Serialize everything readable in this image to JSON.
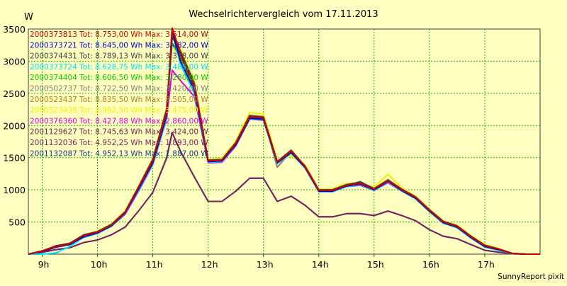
{
  "chart_data": {
    "type": "line",
    "title": "Wechselrichtervergleich vom 17.11.2013",
    "ylabel": "W",
    "xlabel": "",
    "footer": "SunnyReport pixit",
    "ylim": [
      0,
      3500
    ],
    "xlim": [
      8.75,
      18.0
    ],
    "yticks": [
      500,
      1000,
      1500,
      2000,
      2500,
      3000,
      3500
    ],
    "ytick_labels": [
      "500",
      "1000",
      "1500",
      "2000",
      "2500",
      "3000",
      "3500"
    ],
    "xticks": [
      9,
      10,
      11,
      12,
      13,
      14,
      15,
      16,
      17
    ],
    "xtick_labels": [
      "9h",
      "10h",
      "11h",
      "12h",
      "13h",
      "14h",
      "15h",
      "16h",
      "17h"
    ],
    "grid": true,
    "colors": {
      "background": "#ffffc0",
      "grid": "#00c000"
    },
    "series": [
      {
        "name": "2000373813 Tot: 8.753,00 Wh Max: 3.514,00 W",
        "color": "#cc0000",
        "x": [
          8.75,
          9.0,
          9.25,
          9.5,
          9.75,
          10.0,
          10.25,
          10.5,
          10.75,
          11.0,
          11.25,
          11.35,
          11.5,
          11.75,
          12.0,
          12.25,
          12.5,
          12.75,
          13.0,
          13.25,
          13.5,
          13.75,
          14.0,
          14.25,
          14.5,
          14.75,
          15.0,
          15.25,
          15.5,
          15.75,
          16.0,
          16.25,
          16.5,
          16.75,
          17.0,
          17.25,
          17.5,
          17.75,
          18.0
        ],
        "y": [
          0,
          50,
          120,
          160,
          290,
          340,
          450,
          650,
          1050,
          1450,
          2200,
          3514,
          3100,
          2600,
          1450,
          1460,
          1720,
          2130,
          2120,
          1430,
          1600,
          1360,
          990,
          990,
          1070,
          1100,
          1010,
          1140,
          1000,
          880,
          680,
          500,
          430,
          270,
          130,
          80,
          10,
          0,
          0
        ]
      },
      {
        "name": "2000373721 Tot: 8.645,00 Wh Max: 3.482,00 W",
        "color": "#0000cc",
        "x": [
          8.75,
          9.0,
          9.25,
          9.5,
          9.75,
          10.0,
          10.25,
          10.5,
          10.75,
          11.0,
          11.25,
          11.35,
          11.5,
          11.75,
          12.0,
          12.25,
          12.5,
          12.75,
          13.0,
          13.25,
          13.5,
          13.75,
          14.0,
          14.25,
          14.5,
          14.75,
          15.0,
          15.25,
          15.5,
          15.75,
          16.0,
          16.25,
          16.5,
          16.75,
          17.0,
          17.25,
          17.5,
          17.75,
          18.0
        ],
        "y": [
          0,
          40,
          110,
          150,
          270,
          330,
          440,
          640,
          1020,
          1420,
          2150,
          3482,
          3000,
          2550,
          1440,
          1450,
          1700,
          2110,
          2100,
          1420,
          1580,
          1350,
          980,
          980,
          1060,
          1090,
          1000,
          1130,
          990,
          870,
          670,
          490,
          420,
          260,
          120,
          70,
          10,
          0,
          0
        ]
      },
      {
        "name": "2000374431 Tot: 8.789,13 Wh Max: 3.378,00 W",
        "color": "#404040",
        "x": [
          8.75,
          9.0,
          9.25,
          9.5,
          9.75,
          10.0,
          10.25,
          10.5,
          10.75,
          11.0,
          11.25,
          11.35,
          11.5,
          11.75,
          12.0,
          12.25,
          12.5,
          12.75,
          13.0,
          13.25,
          13.5,
          13.75,
          14.0,
          14.25,
          14.5,
          14.75,
          15.0,
          15.25,
          15.5,
          15.75,
          16.0,
          16.25,
          16.5,
          16.75,
          17.0,
          17.25,
          17.5,
          17.75,
          18.0
        ],
        "y": [
          0,
          50,
          130,
          170,
          300,
          350,
          460,
          660,
          1060,
          1470,
          2250,
          3378,
          3150,
          2650,
          1460,
          1470,
          1730,
          2150,
          2130,
          1440,
          1610,
          1370,
          1000,
          1000,
          1080,
          1120,
          1020,
          1150,
          1010,
          890,
          690,
          510,
          440,
          280,
          140,
          80,
          10,
          0,
          0
        ]
      },
      {
        "name": "2000373724 Tot: 8.628,75 Wh Max: 3.485,00 W",
        "color": "#00e0ff",
        "x": [
          8.75,
          9.0,
          9.25,
          9.5,
          9.75,
          10.0,
          10.25,
          10.5,
          10.75,
          11.0,
          11.25,
          11.35,
          11.5,
          11.75,
          12.0,
          12.25,
          12.5,
          12.75,
          13.0,
          13.25,
          13.5,
          13.75,
          14.0,
          14.25,
          14.5,
          14.75,
          15.0,
          15.25,
          15.5,
          15.75,
          16.0,
          16.25,
          16.5,
          16.75,
          17.0,
          17.25,
          17.5,
          17.75,
          18.0
        ],
        "y": [
          0,
          0,
          20,
          120,
          260,
          320,
          430,
          630,
          1000,
          1400,
          2100,
          3485,
          2950,
          2500,
          1430,
          1440,
          1690,
          2100,
          2090,
          1410,
          1570,
          1340,
          970,
          970,
          1050,
          1080,
          990,
          1120,
          980,
          860,
          660,
          480,
          410,
          250,
          110,
          60,
          10,
          0,
          0
        ]
      },
      {
        "name": "2000374404 Tot: 8.606,50 Wh Max: 3.280,00 W",
        "color": "#00cc00",
        "x": [
          8.75,
          9.0,
          9.25,
          9.5,
          9.75,
          10.0,
          10.25,
          10.5,
          10.75,
          11.0,
          11.25,
          11.35,
          11.5,
          11.75,
          12.0,
          12.25,
          12.5,
          12.75,
          13.0,
          13.25,
          13.5,
          13.75,
          14.0,
          14.25,
          14.5,
          14.75,
          15.0,
          15.25,
          15.5,
          15.75,
          16.0,
          16.25,
          16.5,
          16.75,
          17.0,
          17.25,
          17.5,
          17.75,
          18.0
        ],
        "y": [
          0,
          40,
          110,
          150,
          270,
          330,
          440,
          640,
          1030,
          1430,
          2180,
          3280,
          3050,
          2560,
          1440,
          1450,
          1710,
          2120,
          2100,
          1420,
          1590,
          1350,
          980,
          980,
          1060,
          1090,
          1000,
          1130,
          990,
          870,
          670,
          490,
          420,
          260,
          120,
          70,
          10,
          0,
          0
        ]
      },
      {
        "name": "2000502737 Tot: 8.722,50 Wh Max: 3.420,00 W",
        "color": "#808080",
        "x": [
          8.75,
          9.0,
          9.25,
          9.5,
          9.75,
          10.0,
          10.25,
          10.5,
          10.75,
          11.0,
          11.25,
          11.35,
          11.5,
          11.75,
          12.0,
          12.25,
          12.5,
          12.75,
          13.0,
          13.25,
          13.5,
          13.75,
          14.0,
          14.25,
          14.5,
          14.75,
          15.0,
          15.25,
          15.5,
          15.75,
          16.0,
          16.25,
          16.5,
          16.75,
          17.0,
          17.25,
          17.5,
          17.75,
          18.0
        ],
        "y": [
          0,
          50,
          120,
          160,
          290,
          340,
          450,
          650,
          1050,
          1460,
          2220,
          3420,
          3120,
          2620,
          1450,
          1460,
          1720,
          2140,
          2120,
          1350,
          1600,
          1360,
          990,
          990,
          1070,
          1130,
          1010,
          1140,
          1000,
          880,
          680,
          500,
          430,
          270,
          130,
          80,
          10,
          0,
          0
        ]
      },
      {
        "name": "2000523437 Tot: 8.835,50 Wh Max: 3.505,00 W",
        "color": "#b08020",
        "x": [
          8.75,
          9.0,
          9.25,
          9.5,
          9.75,
          10.0,
          10.25,
          10.5,
          10.75,
          11.0,
          11.25,
          11.35,
          11.5,
          11.75,
          12.0,
          12.25,
          12.5,
          12.75,
          13.0,
          13.25,
          13.5,
          13.75,
          14.0,
          14.25,
          14.5,
          14.75,
          15.0,
          15.25,
          15.5,
          15.75,
          16.0,
          16.25,
          16.5,
          16.75,
          17.0,
          17.25,
          17.5,
          17.75,
          18.0
        ],
        "y": [
          0,
          50,
          130,
          170,
          300,
          350,
          460,
          660,
          1060,
          1480,
          2260,
          3505,
          3160,
          2660,
          1460,
          1470,
          1740,
          2160,
          2140,
          1440,
          1620,
          1370,
          1000,
          1000,
          1080,
          1120,
          1020,
          1160,
          1010,
          890,
          690,
          510,
          440,
          280,
          140,
          80,
          10,
          0,
          0
        ]
      },
      {
        "name": "2000523439 Tot: 8.962,50 Wh Max: 3.475,00 W",
        "color": "#f0f000",
        "x": [
          8.75,
          9.0,
          9.25,
          9.5,
          9.75,
          10.0,
          10.25,
          10.5,
          10.75,
          11.0,
          11.25,
          11.35,
          11.5,
          11.75,
          12.0,
          12.25,
          12.5,
          12.75,
          13.0,
          13.25,
          13.5,
          13.75,
          14.0,
          14.25,
          14.5,
          14.75,
          15.0,
          15.25,
          15.5,
          15.75,
          16.0,
          16.25,
          16.5,
          16.75,
          17.0,
          17.25,
          17.5,
          17.75,
          18.0
        ],
        "y": [
          0,
          50,
          130,
          170,
          300,
          360,
          470,
          670,
          1070,
          1490,
          2280,
          3475,
          3200,
          2700,
          1470,
          1490,
          1760,
          2200,
          2180,
          1460,
          1530,
          1390,
          1010,
          1020,
          1100,
          1110,
          1040,
          1240,
          1030,
          900,
          700,
          520,
          450,
          290,
          150,
          90,
          10,
          0,
          0
        ]
      },
      {
        "name": "2000376360 Tot: 8.427,88 Wh Max: 2.860,00 W",
        "color": "#e000e0",
        "x": [
          8.75,
          9.0,
          9.25,
          9.5,
          9.75,
          10.0,
          10.25,
          10.5,
          10.75,
          11.0,
          11.25,
          11.35,
          11.5,
          11.75,
          12.0,
          12.25,
          12.5,
          12.75,
          13.0,
          13.25,
          13.5,
          13.75,
          14.0,
          14.25,
          14.5,
          14.75,
          15.0,
          15.25,
          15.5,
          15.75,
          16.0,
          16.25,
          16.5,
          16.75,
          17.0,
          17.25,
          17.5,
          17.75,
          18.0
        ],
        "y": [
          0,
          40,
          110,
          150,
          270,
          320,
          430,
          620,
          990,
          1390,
          2100,
          2860,
          2700,
          2450,
          1420,
          1430,
          1680,
          2100,
          2080,
          1410,
          1570,
          1340,
          970,
          970,
          1050,
          1070,
          990,
          1110,
          980,
          860,
          660,
          480,
          410,
          250,
          110,
          60,
          10,
          0,
          0
        ]
      },
      {
        "name": "2001129627 Tot: 8.745,63 Wh Max: 3.424,00 W",
        "color": "#6a2a50",
        "x": [
          8.75,
          9.0,
          9.25,
          9.5,
          9.75,
          10.0,
          10.25,
          10.5,
          10.75,
          11.0,
          11.25,
          11.35,
          11.5,
          11.75,
          12.0,
          12.25,
          12.5,
          12.75,
          13.0,
          13.25,
          13.5,
          13.75,
          14.0,
          14.25,
          14.5,
          14.75,
          15.0,
          15.25,
          15.5,
          15.75,
          16.0,
          16.25,
          16.5,
          16.75,
          17.0,
          17.25,
          17.5,
          17.75,
          18.0
        ],
        "y": [
          0,
          50,
          120,
          160,
          290,
          340,
          450,
          650,
          1050,
          1460,
          2230,
          3424,
          3110,
          2610,
          1450,
          1460,
          1720,
          2130,
          2120,
          1430,
          1600,
          1360,
          990,
          990,
          1070,
          1100,
          1010,
          1140,
          1000,
          880,
          680,
          500,
          430,
          270,
          130,
          80,
          10,
          0,
          0
        ]
      },
      {
        "name": "2001132036 Tot: 4.952,25 Wh Max: 1.893,00 W",
        "color": "#802060",
        "x": [
          8.75,
          9.0,
          9.25,
          9.5,
          9.75,
          10.0,
          10.25,
          10.5,
          10.75,
          11.0,
          11.25,
          11.35,
          11.5,
          11.75,
          12.0,
          12.25,
          12.5,
          12.75,
          13.0,
          13.25,
          13.5,
          13.75,
          14.0,
          14.25,
          14.5,
          14.75,
          15.0,
          15.25,
          15.5,
          15.75,
          16.0,
          16.25,
          16.5,
          16.75,
          17.0,
          17.25,
          17.5,
          17.75,
          18.0
        ],
        "y": [
          0,
          30,
          70,
          100,
          180,
          220,
          300,
          420,
          680,
          960,
          1500,
          1893,
          1600,
          1200,
          820,
          820,
          980,
          1180,
          1180,
          820,
          900,
          760,
          580,
          580,
          630,
          630,
          600,
          670,
          600,
          520,
          380,
          280,
          240,
          150,
          60,
          30,
          5,
          0,
          0
        ]
      },
      {
        "name": "2001132087 Tot: 4.952,13 Wh Max: 1.887,00 W",
        "color": "#1a3a80",
        "x": [
          8.75,
          9.0,
          9.25,
          9.5,
          9.75,
          10.0,
          10.25,
          10.5,
          10.75,
          11.0,
          11.25,
          11.35,
          11.5,
          11.75,
          12.0,
          12.25,
          12.5,
          12.75,
          13.0,
          13.25,
          13.5,
          13.75,
          14.0,
          14.25,
          14.5,
          14.75,
          15.0,
          15.25,
          15.5,
          15.75,
          16.0,
          16.25,
          16.5,
          16.75,
          17.0,
          17.25,
          17.5,
          17.75,
          18.0
        ],
        "y": [
          0,
          30,
          70,
          100,
          180,
          220,
          300,
          420,
          680,
          960,
          1490,
          1887,
          1600,
          1200,
          820,
          820,
          980,
          1180,
          1180,
          820,
          900,
          760,
          580,
          580,
          630,
          630,
          600,
          670,
          600,
          520,
          380,
          280,
          240,
          150,
          60,
          30,
          5,
          0,
          0
        ]
      }
    ]
  }
}
